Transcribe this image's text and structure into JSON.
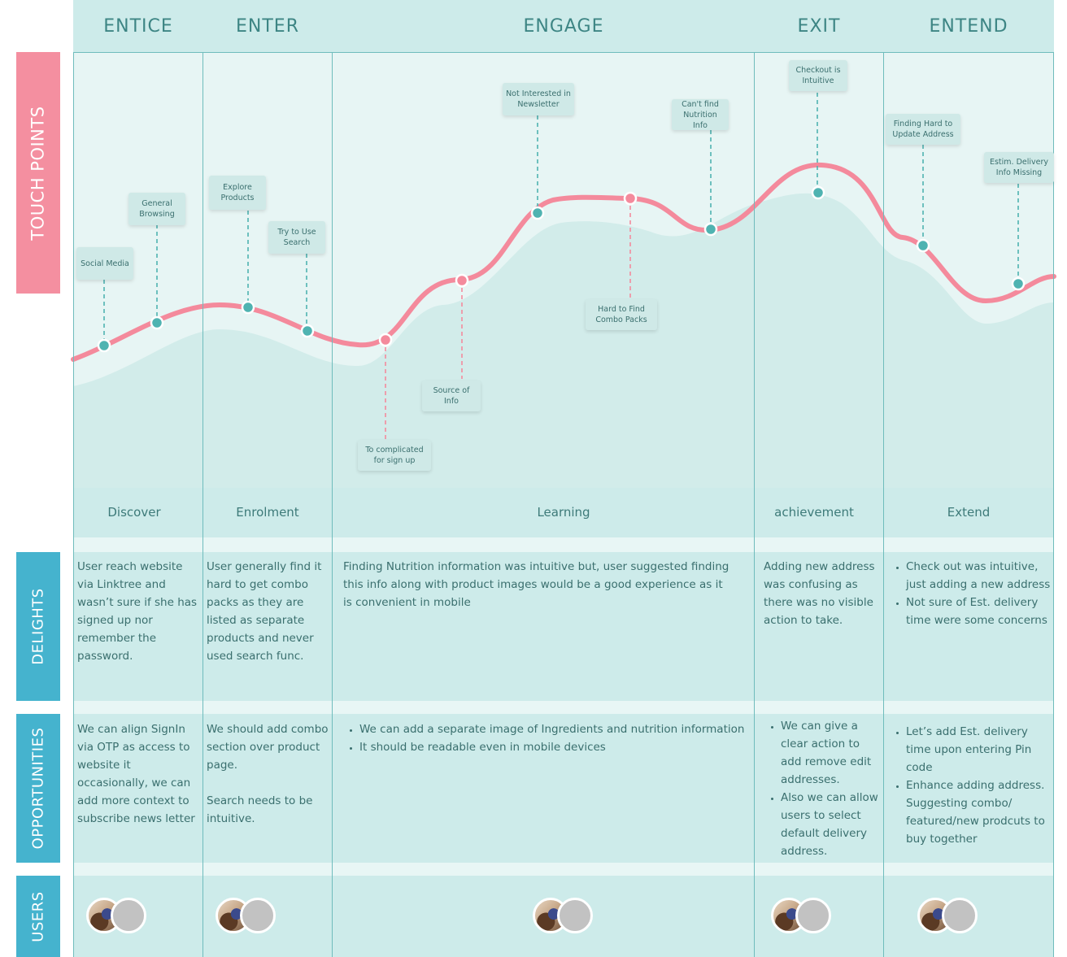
{
  "phases": [
    "ENTICE",
    "ENTER",
    "ENGAGE",
    "EXIT",
    "ENTEND"
  ],
  "row_labels": {
    "touch_points": "TOUCH POINTS",
    "delights": "DELIGHTS",
    "opportunities": "OPPORTUNITIES",
    "users": "USERS"
  },
  "touch_points": {
    "social_media": "Social Media",
    "general_browsing": "General Browsing",
    "explore_products": "Explore Products",
    "try_search": "Try to Use Search",
    "complicated_signup": "To complicated for sign up",
    "source_of_info": "Source of Info",
    "not_interested_newsletter": "Not Interested in Newsletter",
    "hard_to_find_combo": "Hard to Find Combo Packs",
    "cant_find_nutrition": "Can't find Nutrition Info",
    "checkout_intuitive": "Checkout is Intuitive",
    "hard_update_address": "Finding Hard to Update Address",
    "delivery_missing": "Estim. Delivery Info Missing"
  },
  "stages": [
    "Discover",
    "Enrolment",
    "Learning",
    "achievement",
    "Extend"
  ],
  "delights": {
    "entice": "User reach website via Linktree and wasn’t sure if she has signed up nor remember the password.",
    "enter": "User generally find it hard to get combo packs as they are listed as separate products and never used search func.",
    "engage": "Finding Nutrition information was intuitive but, user suggested finding this info along with product images would be a good experience as it is convenient in mobile",
    "exit": "Adding new address was confusing as there was no visible action to take.",
    "extend": [
      "Check out was intuitive, just adding a new address",
      "Not sure of Est. delivery time were some concerns"
    ]
  },
  "opportunities": {
    "entice": "We can align SignIn via OTP as access to website it occasionally, we can add more context to subscribe news letter",
    "enter_1": "We should add combo section over product page.",
    "enter_2": "Search needs to be intuitive.",
    "engage": [
      "We can add a separate image of Ingredients and nutrition information",
      "It should be readable even in mobile devices"
    ],
    "exit": [
      "We can give a clear action to add remove edit addresses.",
      "Also we can allow users to select default delivery address."
    ],
    "extend": [
      "Let’s add Est. delivery time upon entering Pin code",
      "Enhance adding address. Suggesting combo/ featured/new prodcuts to buy together"
    ]
  },
  "colors": {
    "teal_background": "#e6f4f3",
    "teal_band": "#cdebea",
    "teal_accent": "#4fb3b1",
    "pink_curve": "#f48a9c",
    "pink_label": "#f38fa0",
    "blue_label": "#45b3ce"
  },
  "icons": [
    "user-photo-avatar",
    "user-placeholder-avatar"
  ]
}
